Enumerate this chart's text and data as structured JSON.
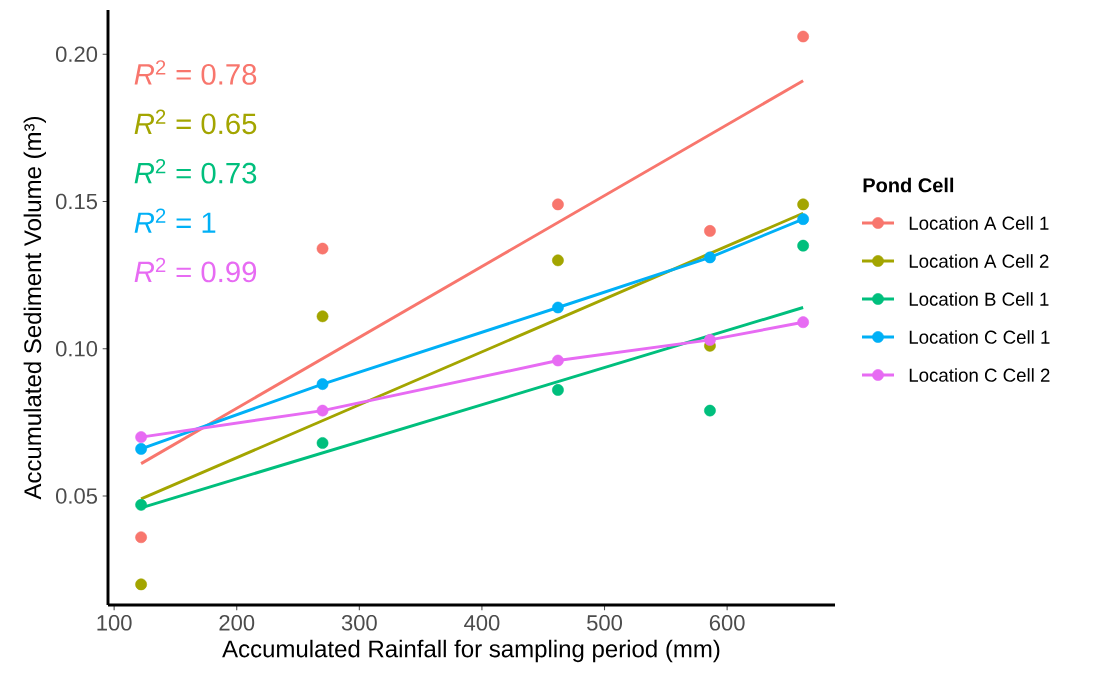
{
  "chart_data": {
    "type": "scatter",
    "xlabel": "Accumulated Rainfall for sampling period (mm)",
    "ylabel": "Accumulated Sediment Volume (m³)",
    "legend_title": "Pond Cell",
    "xlim": [
      95,
      688
    ],
    "ylim": [
      0.013,
      0.215
    ],
    "xticks": [
      100,
      200,
      300,
      400,
      500,
      600
    ],
    "yticks": [
      {
        "value": 0.05,
        "label": "0.05"
      },
      {
        "value": 0.1,
        "label": "0.10"
      },
      {
        "value": 0.15,
        "label": "0.15"
      },
      {
        "value": 0.2,
        "label": "0.20"
      }
    ],
    "x": [
      122,
      270,
      462,
      586,
      662
    ],
    "series": [
      {
        "name": "Location A Cell 1",
        "marker": "circle",
        "color": "#f8766d",
        "values": [
          0.036,
          0.134,
          0.149,
          0.14,
          0.206
        ]
      },
      {
        "name": "Location A Cell 2",
        "marker": "circle",
        "color": "#a3a500",
        "values": [
          0.02,
          0.111,
          0.13,
          0.101,
          0.149
        ]
      },
      {
        "name": "Location B Cell 1",
        "marker": "circle",
        "color": "#00bf7d",
        "values": [
          0.047,
          0.068,
          0.086,
          0.079,
          0.135
        ]
      },
      {
        "name": "Location C Cell 1",
        "marker": "circle",
        "color": "#00b0f6",
        "values": [
          0.066,
          0.088,
          0.114,
          0.131,
          0.144
        ]
      },
      {
        "name": "Location C Cell 2",
        "marker": "circle",
        "color": "#e76bf3",
        "values": [
          0.07,
          0.079,
          0.096,
          0.103,
          0.109
        ]
      },
      {
        "type": "line",
        "marker": "none",
        "color": "#f8766d",
        "x": [
          122,
          662
        ],
        "values": [
          0.061,
          0.191
        ]
      },
      {
        "type": "line",
        "marker": "none",
        "color": "#a3a500",
        "x": [
          122,
          662
        ],
        "values": [
          0.049,
          0.146
        ]
      },
      {
        "type": "line",
        "marker": "none",
        "color": "#00bf7d",
        "x": [
          122,
          662
        ],
        "values": [
          0.046,
          0.114
        ]
      },
      {
        "type": "line",
        "marker": "none",
        "color": "#00b0f6",
        "x": [
          122,
          270,
          462,
          586,
          662
        ],
        "values": [
          0.066,
          0.088,
          0.114,
          0.131,
          0.144
        ]
      },
      {
        "type": "line",
        "marker": "none",
        "color": "#e76bf3",
        "x": [
          122,
          270,
          462,
          586,
          662
        ],
        "values": [
          0.07,
          0.079,
          0.096,
          0.103,
          0.109
        ]
      }
    ],
    "annotations": [
      "*R*$^{2}$ = 0.78",
      "*R*$^{2}$ = 0.65",
      "*R*$^{2}$ = 0.73",
      "*R*$^{2}$ = 1",
      "*R*$^{2}$ = 0.99"
    ],
    "line_style": "solid",
    "grid": false,
    "legend": "right"
  }
}
